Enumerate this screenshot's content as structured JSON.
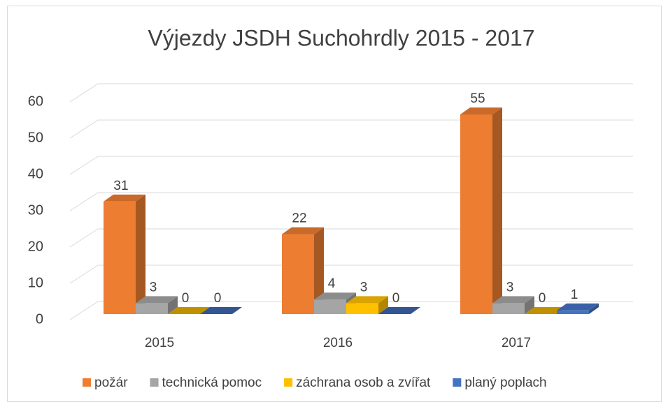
{
  "chart_data": {
    "type": "bar3d",
    "title": "Výjezdy JSDH Suchohrdly 2015 - 2017",
    "categories": [
      "2015",
      "2016",
      "2017"
    ],
    "series": [
      {
        "name": "požár",
        "color": "#ed7d31",
        "values": [
          31,
          22,
          55
        ]
      },
      {
        "name": "technická pomoc",
        "color": "#a5a5a5",
        "values": [
          3,
          4,
          3
        ]
      },
      {
        "name": "záchrana osob a zvířat",
        "color": "#ffc000",
        "values": [
          0,
          3,
          0
        ]
      },
      {
        "name": "planý poplach",
        "color": "#4472c4",
        "values": [
          0,
          0,
          1
        ]
      }
    ],
    "ylim": [
      0,
      60
    ],
    "yticks": [
      0,
      10,
      20,
      30,
      40,
      50,
      60
    ],
    "grid": true,
    "legend": "bottom"
  }
}
